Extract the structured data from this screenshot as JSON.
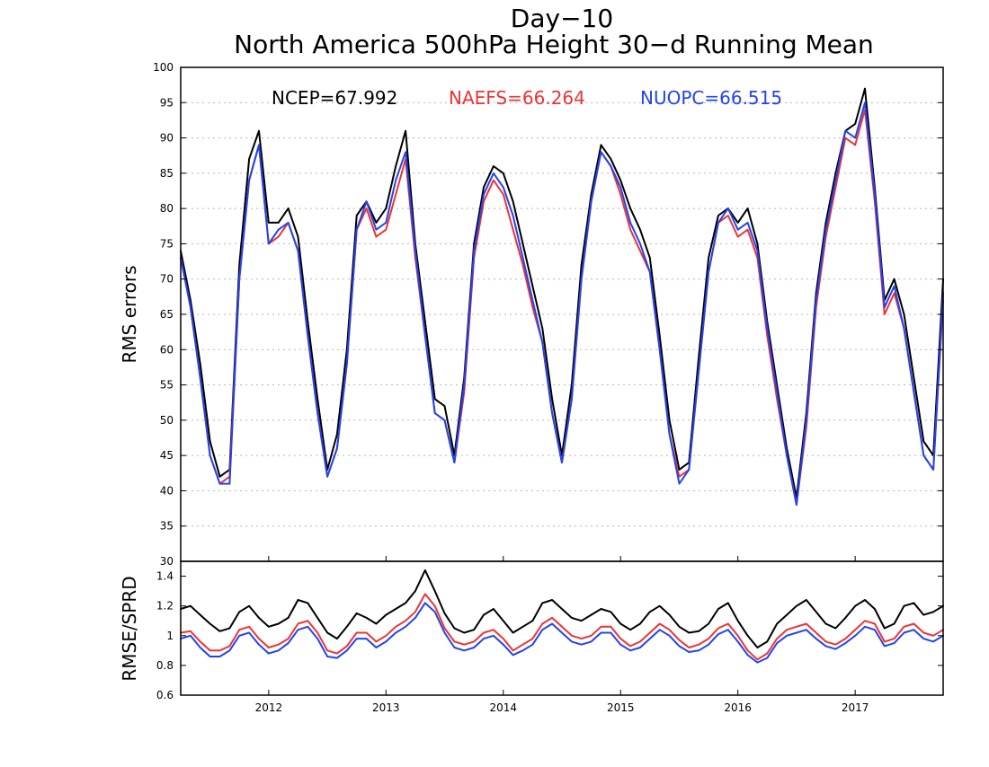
{
  "chart_data": [
    {
      "type": "line",
      "title": "Day−10",
      "subtitle": "North America 500hPa Height 30−d Running Mean",
      "ylabel": "RMS errors",
      "ylim": [
        30,
        100
      ],
      "yticks": [
        30,
        35,
        40,
        45,
        50,
        55,
        60,
        65,
        70,
        75,
        80,
        85,
        90,
        95,
        100
      ],
      "xlim": [
        "2011-04",
        "2017-10"
      ],
      "x_ticks": [
        "2012",
        "2013",
        "2014",
        "2015",
        "2016",
        "2017"
      ],
      "grid": true,
      "annotations": [
        "NCEP=67.992",
        "NAEFS=66.264",
        "NUOPC=66.515"
      ],
      "x": [
        "2011-04",
        "2011-05",
        "2011-06",
        "2011-07",
        "2011-08",
        "2011-09",
        "2011-10",
        "2011-11",
        "2011-12",
        "2012-01",
        "2012-02",
        "2012-03",
        "2012-04",
        "2012-05",
        "2012-06",
        "2012-07",
        "2012-08",
        "2012-09",
        "2012-10",
        "2012-11",
        "2012-12",
        "2013-01",
        "2013-02",
        "2013-03",
        "2013-04",
        "2013-05",
        "2013-06",
        "2013-07",
        "2013-08",
        "2013-09",
        "2013-10",
        "2013-11",
        "2013-12",
        "2014-01",
        "2014-02",
        "2014-03",
        "2014-04",
        "2014-05",
        "2014-06",
        "2014-07",
        "2014-08",
        "2014-09",
        "2014-10",
        "2014-11",
        "2014-12",
        "2015-01",
        "2015-02",
        "2015-03",
        "2015-04",
        "2015-05",
        "2015-06",
        "2015-07",
        "2015-08",
        "2015-09",
        "2015-10",
        "2015-11",
        "2015-12",
        "2016-01",
        "2016-02",
        "2016-03",
        "2016-04",
        "2016-05",
        "2016-06",
        "2016-07",
        "2016-08",
        "2016-09",
        "2016-10",
        "2016-11",
        "2016-12",
        "2017-01",
        "2017-02",
        "2017-03",
        "2017-04",
        "2017-05",
        "2017-06",
        "2017-07",
        "2017-08",
        "2017-09",
        "2017-10"
      ],
      "series": [
        {
          "name": "NCEP",
          "color": "#000000",
          "values": [
            74,
            67,
            58,
            47,
            42,
            43,
            72,
            87,
            91,
            78,
            78,
            80,
            76,
            64,
            53,
            43,
            48,
            60,
            79,
            81,
            78,
            80,
            86,
            91,
            75,
            64,
            53,
            52,
            45,
            56,
            75,
            83,
            86,
            85,
            81,
            75,
            69,
            63,
            53,
            45,
            55,
            72,
            82,
            89,
            87,
            84,
            80,
            77,
            73,
            62,
            50,
            43,
            44,
            59,
            73,
            79,
            80,
            78,
            80,
            75,
            64,
            55,
            46,
            39,
            51,
            68,
            78,
            85,
            91,
            92,
            97,
            83,
            67,
            70,
            65,
            56,
            47,
            45,
            70
          ]
        },
        {
          "name": "NAEFS",
          "color": "#ee3333",
          "values": [
            73,
            66,
            56,
            45,
            41,
            42,
            70,
            84,
            89,
            75,
            76,
            78,
            74,
            62,
            51,
            42,
            46,
            58,
            77,
            80,
            76,
            77,
            82,
            87,
            73,
            62,
            51,
            50,
            44,
            54,
            73,
            81,
            84,
            82,
            77,
            72,
            66,
            61,
            51,
            44,
            53,
            70,
            81,
            88,
            86,
            82,
            77,
            74,
            71,
            60,
            48,
            42,
            43,
            57,
            71,
            78,
            79,
            76,
            77,
            73,
            62,
            53,
            45,
            38,
            49,
            66,
            76,
            83,
            90,
            89,
            94,
            81,
            65,
            68,
            63,
            54,
            45,
            43,
            67
          ]
        },
        {
          "name": "NUOPC",
          "color": "#2244ee",
          "values": [
            73,
            66,
            56,
            45,
            41,
            41,
            70,
            84,
            89,
            75,
            77,
            78,
            74,
            62,
            51,
            42,
            46,
            58,
            77,
            81,
            77,
            78,
            84,
            88,
            74,
            62,
            51,
            50,
            44,
            55,
            74,
            82,
            85,
            83,
            79,
            73,
            67,
            61,
            51,
            44,
            53,
            70,
            81,
            88,
            86,
            83,
            78,
            75,
            71,
            60,
            48,
            41,
            43,
            57,
            71,
            78,
            80,
            77,
            78,
            74,
            63,
            54,
            45,
            38,
            50,
            67,
            77,
            84,
            91,
            90,
            95,
            82,
            66,
            69,
            63,
            54,
            45,
            43,
            68
          ]
        }
      ]
    },
    {
      "type": "line",
      "ylabel": "RMSE/SPRD",
      "ylim": [
        0.6,
        1.5
      ],
      "yticks": [
        0.6,
        0.8,
        1,
        1.2,
        1.4
      ],
      "xlim": [
        "2011-04",
        "2017-10"
      ],
      "x_ticks": [
        "2012",
        "2013",
        "2014",
        "2015",
        "2016",
        "2017"
      ],
      "grid": false,
      "x": [
        "2011-04",
        "2011-05",
        "2011-06",
        "2011-07",
        "2011-08",
        "2011-09",
        "2011-10",
        "2011-11",
        "2011-12",
        "2012-01",
        "2012-02",
        "2012-03",
        "2012-04",
        "2012-05",
        "2012-06",
        "2012-07",
        "2012-08",
        "2012-09",
        "2012-10",
        "2012-11",
        "2012-12",
        "2013-01",
        "2013-02",
        "2013-03",
        "2013-04",
        "2013-05",
        "2013-06",
        "2013-07",
        "2013-08",
        "2013-09",
        "2013-10",
        "2013-11",
        "2013-12",
        "2014-01",
        "2014-02",
        "2014-03",
        "2014-04",
        "2014-05",
        "2014-06",
        "2014-07",
        "2014-08",
        "2014-09",
        "2014-10",
        "2014-11",
        "2014-12",
        "2015-01",
        "2015-02",
        "2015-03",
        "2015-04",
        "2015-05",
        "2015-06",
        "2015-07",
        "2015-08",
        "2015-09",
        "2015-10",
        "2015-11",
        "2015-12",
        "2016-01",
        "2016-02",
        "2016-03",
        "2016-04",
        "2016-05",
        "2016-06",
        "2016-07",
        "2016-08",
        "2016-09",
        "2016-10",
        "2016-11",
        "2016-12",
        "2017-01",
        "2017-02",
        "2017-03",
        "2017-04",
        "2017-05",
        "2017-06",
        "2017-07",
        "2017-08",
        "2017-09",
        "2017-10"
      ],
      "series": [
        {
          "name": "NCEP",
          "color": "#000000",
          "values": [
            1.18,
            1.2,
            1.14,
            1.08,
            1.03,
            1.05,
            1.16,
            1.2,
            1.12,
            1.06,
            1.08,
            1.12,
            1.24,
            1.22,
            1.12,
            1.02,
            0.98,
            1.06,
            1.15,
            1.12,
            1.08,
            1.14,
            1.18,
            1.22,
            1.3,
            1.44,
            1.3,
            1.15,
            1.05,
            1.02,
            1.04,
            1.14,
            1.18,
            1.1,
            1.02,
            1.06,
            1.1,
            1.22,
            1.24,
            1.18,
            1.12,
            1.1,
            1.14,
            1.18,
            1.16,
            1.08,
            1.04,
            1.08,
            1.16,
            1.2,
            1.14,
            1.06,
            1.02,
            1.03,
            1.08,
            1.18,
            1.22,
            1.1,
            1.0,
            0.92,
            0.96,
            1.08,
            1.14,
            1.2,
            1.24,
            1.16,
            1.08,
            1.05,
            1.12,
            1.2,
            1.24,
            1.18,
            1.05,
            1.08,
            1.2,
            1.22,
            1.14,
            1.16,
            1.2
          ]
        },
        {
          "name": "NAEFS",
          "color": "#ee3333",
          "values": [
            1.02,
            1.03,
            0.96,
            0.9,
            0.9,
            0.93,
            1.04,
            1.06,
            0.98,
            0.92,
            0.94,
            0.98,
            1.08,
            1.1,
            1.02,
            0.9,
            0.88,
            0.93,
            1.02,
            1.02,
            0.96,
            1.0,
            1.06,
            1.1,
            1.16,
            1.28,
            1.2,
            1.05,
            0.96,
            0.94,
            0.96,
            1.02,
            1.04,
            0.98,
            0.9,
            0.94,
            0.98,
            1.08,
            1.12,
            1.06,
            1.0,
            0.98,
            1.0,
            1.06,
            1.06,
            0.98,
            0.93,
            0.96,
            1.02,
            1.08,
            1.04,
            0.97,
            0.92,
            0.94,
            0.98,
            1.05,
            1.08,
            1.0,
            0.9,
            0.84,
            0.88,
            0.98,
            1.04,
            1.06,
            1.08,
            1.02,
            0.96,
            0.94,
            0.98,
            1.04,
            1.1,
            1.08,
            0.96,
            0.98,
            1.06,
            1.08,
            1.02,
            1.0,
            1.04
          ]
        },
        {
          "name": "NUOPC",
          "color": "#2244ee",
          "values": [
            0.98,
            1.0,
            0.92,
            0.86,
            0.86,
            0.9,
            1.0,
            1.02,
            0.94,
            0.88,
            0.9,
            0.95,
            1.04,
            1.06,
            0.98,
            0.86,
            0.85,
            0.9,
            0.98,
            0.98,
            0.92,
            0.96,
            1.02,
            1.06,
            1.12,
            1.22,
            1.16,
            1.02,
            0.92,
            0.9,
            0.92,
            0.98,
            1.0,
            0.94,
            0.87,
            0.9,
            0.94,
            1.04,
            1.08,
            1.02,
            0.96,
            0.94,
            0.96,
            1.02,
            1.02,
            0.94,
            0.9,
            0.92,
            0.98,
            1.04,
            1.0,
            0.93,
            0.89,
            0.9,
            0.94,
            1.01,
            1.04,
            0.96,
            0.87,
            0.82,
            0.85,
            0.95,
            1.0,
            1.02,
            1.04,
            0.98,
            0.93,
            0.91,
            0.95,
            1.0,
            1.06,
            1.04,
            0.93,
            0.95,
            1.02,
            1.04,
            0.98,
            0.96,
            1.0
          ]
        }
      ]
    }
  ]
}
